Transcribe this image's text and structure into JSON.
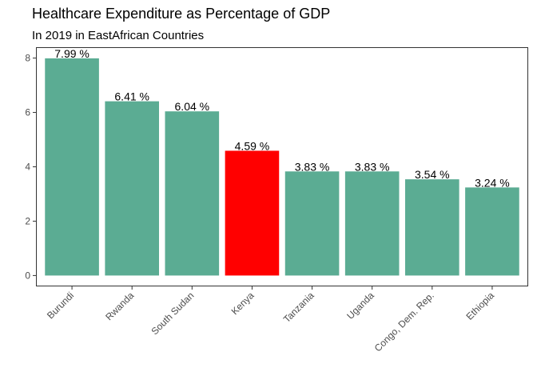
{
  "chart_data": {
    "type": "bar",
    "title": "Healthcare Expenditure as Percentage of GDP",
    "subtitle": "In 2019 in EastAfrican Countries",
    "xlabel": "",
    "ylabel": "",
    "categories": [
      "Burundi",
      "Rwanda",
      "South Sudan",
      "Kenya",
      "Tanzania",
      "Uganda",
      "Congo, Dem. Rep.",
      "Ethiopia"
    ],
    "values": [
      7.99,
      6.41,
      6.04,
      4.59,
      3.83,
      3.83,
      3.54,
      3.24
    ],
    "data_labels": [
      "7.99 %",
      "6.41 %",
      "6.04 %",
      "4.59 %",
      "3.83 %",
      "3.83 %",
      "3.54 %",
      "3.24 %"
    ],
    "y_ticks": [
      0,
      2,
      4,
      6,
      8
    ],
    "ylim": [
      -0.4,
      8.4
    ],
    "grid": false,
    "legend": "none",
    "colors": {
      "default_bar": "#5bac93",
      "highlight_bar": "#ff0000",
      "highlight_category": "Kenya"
    }
  }
}
